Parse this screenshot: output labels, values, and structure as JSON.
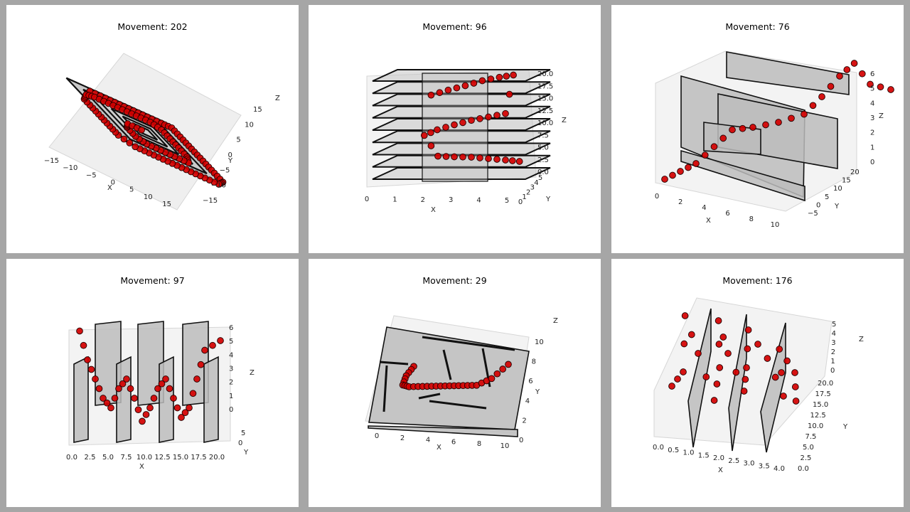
{
  "chart_data": [
    {
      "type": "scatter",
      "title": "Movement: 202",
      "xlabel": "X",
      "ylabel": "Y",
      "zlabel": "Z",
      "xticks": [
        "−15",
        "−10",
        "−5",
        "0",
        "5",
        "10",
        "15"
      ],
      "yticks": [
        "−15",
        "−10",
        "−5",
        "0",
        "5",
        "10",
        "15"
      ],
      "xlim": [
        -15,
        15
      ],
      "ylim": [
        -15,
        15
      ],
      "path": [
        [
          -8.5,
          12
        ],
        [
          -4,
          12
        ],
        [
          0,
          12
        ],
        [
          4,
          12
        ],
        [
          8,
          12
        ],
        [
          12,
          12
        ],
        [
          15,
          12
        ],
        [
          15,
          8
        ],
        [
          15,
          4
        ],
        [
          15,
          0
        ],
        [
          15,
          -4
        ],
        [
          15,
          -8
        ],
        [
          15,
          -12
        ],
        [
          12,
          -15
        ],
        [
          8,
          -15
        ],
        [
          4,
          -15
        ],
        [
          0,
          -15
        ],
        [
          -4,
          -15
        ],
        [
          -8,
          -15
        ],
        [
          -12,
          -15
        ],
        [
          -15,
          -12
        ],
        [
          -15,
          -8
        ],
        [
          -15,
          -4
        ],
        [
          -15,
          0
        ],
        [
          -15,
          4
        ],
        [
          -12,
          8
        ],
        [
          -9,
          9
        ],
        [
          -5,
          9
        ],
        [
          -1,
          9
        ],
        [
          3,
          9
        ],
        [
          7,
          9
        ],
        [
          9,
          7
        ],
        [
          9,
          3
        ],
        [
          9,
          -1
        ],
        [
          9,
          -5
        ],
        [
          7,
          -9
        ],
        [
          3,
          -9
        ],
        [
          -1,
          -9
        ],
        [
          -5,
          -9
        ],
        [
          -7,
          -7
        ],
        [
          -7,
          -3
        ],
        [
          -5,
          0
        ],
        [
          -1,
          0
        ]
      ]
    },
    {
      "type": "scatter",
      "title": "Movement: 96",
      "xlabel": "X",
      "ylabel": "Y",
      "zlabel": "Z",
      "xticks": [
        "0",
        "1",
        "2",
        "3",
        "4",
        "5"
      ],
      "yticks": [
        "0",
        "1",
        "2",
        "3",
        "4",
        "5"
      ],
      "zticks": [
        "0.0",
        "2.5",
        "5.0",
        "7.5",
        "10.0",
        "12.5",
        "15.0",
        "17.5",
        "20.0"
      ],
      "xlim": [
        0,
        5
      ],
      "ylim": [
        0,
        5
      ],
      "zlim": [
        0,
        20
      ],
      "path": [
        [
          1.8,
          1,
          15.5
        ],
        [
          2.3,
          1.5,
          16.3
        ],
        [
          2.8,
          2,
          17
        ],
        [
          3.3,
          2.5,
          17.8
        ],
        [
          3.8,
          3,
          18.3
        ],
        [
          4.2,
          3.5,
          18.6
        ],
        [
          4,
          3,
          11.5
        ],
        [
          3.5,
          2.5,
          11
        ],
        [
          3,
          2,
          10.5
        ],
        [
          2.5,
          1.5,
          9.8
        ],
        [
          2,
          1,
          9
        ],
        [
          1.6,
          0.8,
          8
        ],
        [
          2,
          1.2,
          4
        ],
        [
          2.5,
          1.5,
          3.8
        ],
        [
          3,
          2,
          3.6
        ],
        [
          3.5,
          2.5,
          3.2
        ],
        [
          4,
          3,
          2.8
        ],
        [
          4.4,
          3.5,
          2.4
        ]
      ]
    },
    {
      "type": "scatter",
      "title": "Movement: 76",
      "xlabel": "X",
      "ylabel": "Y",
      "zlabel": "Z",
      "xticks": [
        "0",
        "2",
        "4",
        "6",
        "8",
        "10"
      ],
      "yticks": [
        "−5",
        "0",
        "5",
        "10",
        "15",
        "20"
      ],
      "zticks": [
        "0",
        "1",
        "2",
        "3",
        "4",
        "5",
        "6"
      ],
      "xlim": [
        0,
        10
      ],
      "ylim": [
        -5,
        20
      ],
      "zlim": [
        0,
        6
      ],
      "path": [
        [
          0,
          0,
          0
        ],
        [
          1,
          0,
          0.5
        ],
        [
          2,
          0,
          1
        ],
        [
          3,
          0.5,
          2
        ],
        [
          4,
          1,
          3
        ],
        [
          5,
          2,
          3
        ],
        [
          6,
          4,
          3
        ],
        [
          7,
          6,
          3.2
        ],
        [
          7.5,
          8,
          4
        ],
        [
          8,
          10,
          5
        ],
        [
          8.3,
          12,
          5.5
        ],
        [
          9,
          13,
          4
        ],
        [
          10,
          14,
          3.5
        ]
      ]
    },
    {
      "type": "scatter",
      "title": "Movement: 97",
      "xlabel": "X",
      "ylabel": "Y",
      "zlabel": "Z",
      "xticks": [
        "0.0",
        "2.5",
        "5.0",
        "7.5",
        "10.0",
        "12.5",
        "15.0",
        "17.5",
        "20.0"
      ],
      "yticks": [
        "0",
        "5"
      ],
      "zticks": [
        "0",
        "1",
        "2",
        "3",
        "4",
        "5",
        "6"
      ],
      "xlim": [
        0,
        20
      ],
      "ylim": [
        0,
        5
      ],
      "zlim": [
        0,
        6
      ],
      "path": [
        [
          1,
          3,
          5.5
        ],
        [
          2,
          3,
          4
        ],
        [
          3,
          3,
          3
        ],
        [
          4,
          3,
          2
        ],
        [
          5,
          3,
          1.5
        ],
        [
          6,
          3,
          2.5
        ],
        [
          7,
          3,
          3
        ],
        [
          8,
          3,
          2
        ],
        [
          9,
          3,
          0.8
        ],
        [
          10,
          3,
          1.5
        ],
        [
          11,
          3,
          2.5
        ],
        [
          12,
          3,
          3
        ],
        [
          13,
          3,
          2
        ],
        [
          14,
          3,
          1
        ],
        [
          15,
          3,
          1.5
        ],
        [
          16,
          3,
          3
        ],
        [
          17,
          3,
          4.5
        ],
        [
          19,
          3,
          5
        ]
      ]
    },
    {
      "type": "scatter",
      "title": "Movement: 29",
      "xlabel": "X",
      "ylabel": "Y",
      "zlabel": "Z",
      "xticks": [
        "0",
        "2",
        "4",
        "6",
        "8",
        "10"
      ],
      "yticks": [
        "0",
        "2",
        "4",
        "6",
        "8",
        "10"
      ],
      "xlim": [
        0,
        10
      ],
      "ylim": [
        0,
        10
      ],
      "path": [
        [
          2,
          6
        ],
        [
          1.6,
          5
        ],
        [
          1.5,
          4
        ],
        [
          2,
          3.8
        ],
        [
          3,
          3.8
        ],
        [
          4,
          3.8
        ],
        [
          5,
          3.8
        ],
        [
          6,
          3.8
        ],
        [
          7,
          3.8
        ],
        [
          8,
          4.5
        ],
        [
          9,
          6
        ]
      ]
    },
    {
      "type": "scatter",
      "title": "Movement: 176",
      "xlabel": "X",
      "ylabel": "Y",
      "zlabel": "Z",
      "xticks": [
        "0.0",
        "0.5",
        "1.0",
        "1.5",
        "2.0",
        "2.5",
        "3.0",
        "3.5",
        "4.0"
      ],
      "yticks": [
        "0.0",
        "2.5",
        "5.0",
        "7.5",
        "10.0",
        "12.5",
        "15.0",
        "17.5",
        "20.0"
      ],
      "zticks": [
        "0",
        "1",
        "2",
        "3",
        "4",
        "5"
      ],
      "xlim": [
        0,
        4
      ],
      "ylim": [
        0,
        20
      ],
      "zlim": [
        0,
        5
      ],
      "path": [
        [
          0,
          10,
          1
        ],
        [
          0.5,
          12,
          1.5
        ],
        [
          0.8,
          16,
          4
        ],
        [
          1,
          12,
          2.5
        ],
        [
          1.3,
          8,
          0.5
        ],
        [
          1.6,
          10,
          2
        ],
        [
          1.8,
          14,
          4
        ],
        [
          2,
          12,
          2.5
        ],
        [
          2.3,
          8,
          1
        ],
        [
          2.5,
          10,
          2
        ],
        [
          2.8,
          14,
          3.5
        ],
        [
          3.2,
          10,
          2.5
        ],
        [
          3.5,
          6,
          1
        ],
        [
          3.6,
          10,
          3
        ],
        [
          4,
          8,
          2
        ],
        [
          3.8,
          4,
          1
        ]
      ]
    }
  ]
}
